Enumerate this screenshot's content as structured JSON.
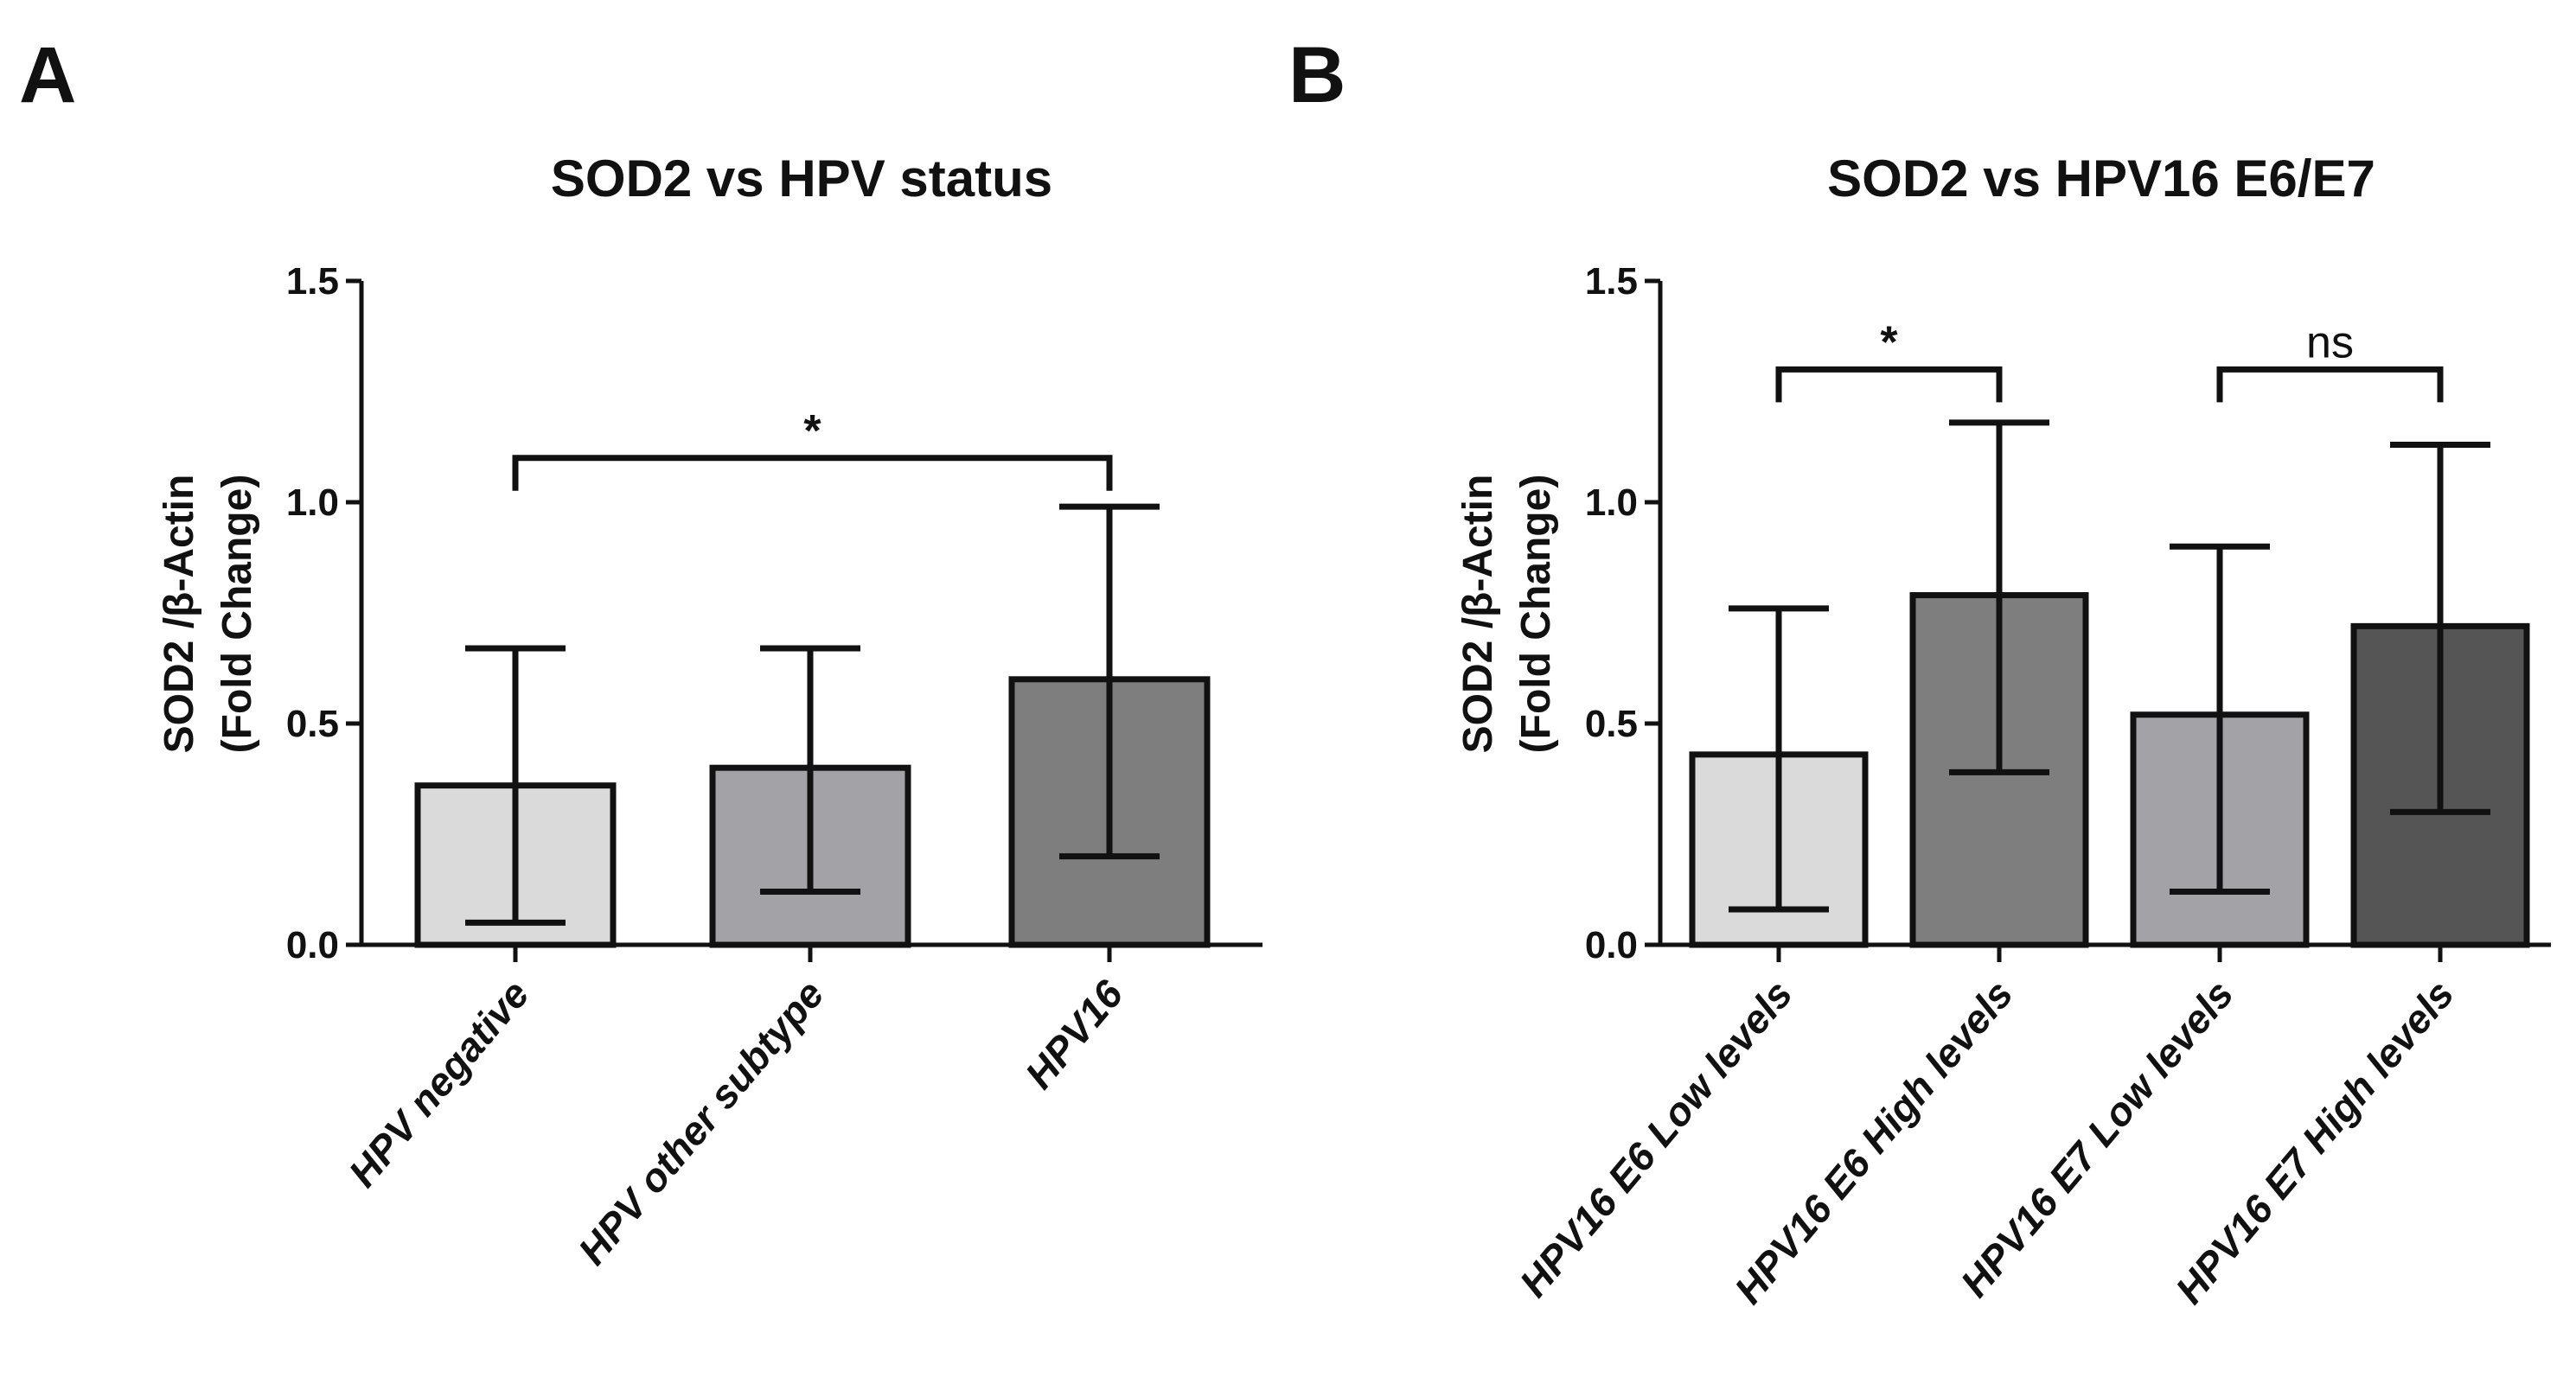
{
  "panels": {
    "a": {
      "letter": "A"
    },
    "b": {
      "letter": "B"
    }
  },
  "chart_data": [
    {
      "type": "bar",
      "title": "SOD2 vs HPV status",
      "xlabel": "",
      "ylabel_line1": "SOD2 /β-Actin",
      "ylabel_line2": "(Fold Change)",
      "ylim": [
        0,
        1.5
      ],
      "yticks": [
        "0.0",
        "0.5",
        "1.0",
        "1.5"
      ],
      "categories": [
        "HPV negative",
        "HPV other subtype",
        "HPV16"
      ],
      "values": [
        0.36,
        0.4,
        0.6
      ],
      "error_low": [
        0.05,
        0.12,
        0.2
      ],
      "error_high": [
        0.67,
        0.67,
        0.99
      ],
      "bar_colors": [
        "#dadada",
        "#a3a3a7",
        "#7e7e7e"
      ],
      "significance": [
        {
          "from": 0,
          "to": 2,
          "label": "*",
          "level": 1.1
        }
      ]
    },
    {
      "type": "bar",
      "title": "SOD2 vs HPV16 E6/E7",
      "xlabel": "",
      "ylabel_line1": "SOD2 /β-Actin",
      "ylabel_line2": "(Fold Change)",
      "ylim": [
        0,
        1.5
      ],
      "yticks": [
        "0.0",
        "0.5",
        "1.0",
        "1.5"
      ],
      "categories": [
        "HPV16 E6 Low levels",
        "HPV16 E6 High levels",
        "HPV16 E7 Low levels",
        "HPV16 E7 High levels"
      ],
      "values": [
        0.43,
        0.79,
        0.52,
        0.72
      ],
      "error_low": [
        0.08,
        0.39,
        0.12,
        0.3
      ],
      "error_high": [
        0.76,
        1.18,
        0.9,
        1.13
      ],
      "bar_colors": [
        "#dadada",
        "#7e7e7e",
        "#a3a3a7",
        "#555555"
      ],
      "significance": [
        {
          "from": 0,
          "to": 1,
          "label": "*",
          "level": 1.3
        },
        {
          "from": 2,
          "to": 3,
          "label": "ns",
          "level": 1.3
        }
      ]
    }
  ]
}
